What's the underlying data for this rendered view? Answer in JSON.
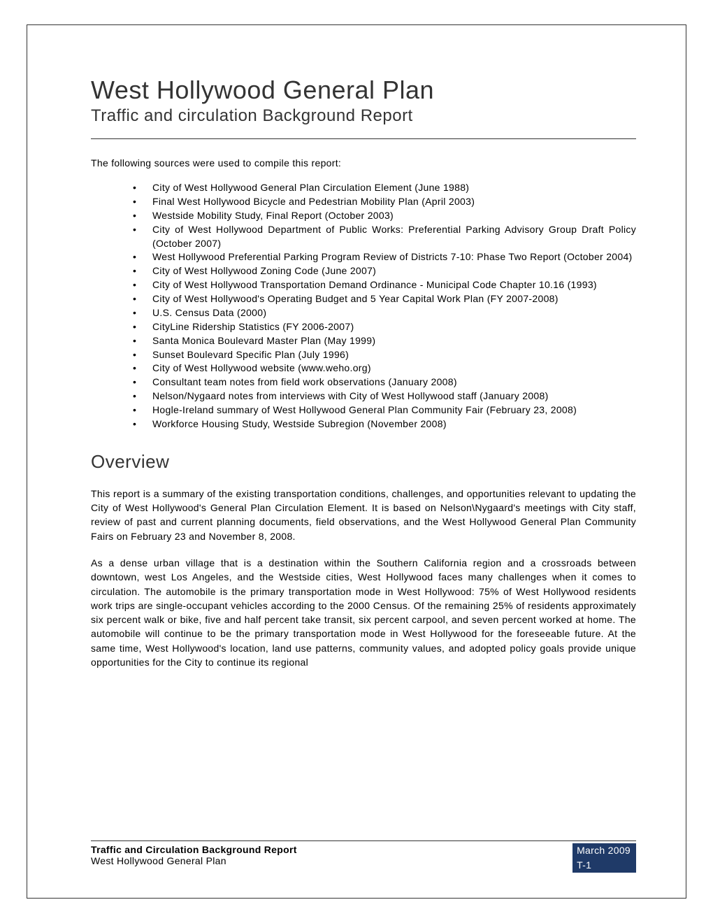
{
  "title": "West Hollywood General Plan",
  "subtitle": "Traffic and circulation Background Report",
  "intro": "The following sources were used to compile this report:",
  "sources": [
    "City of West Hollywood General Plan Circulation Element (June 1988)",
    "Final West Hollywood Bicycle and Pedestrian Mobility Plan (April 2003)",
    "Westside Mobility Study, Final Report (October 2003)",
    "City of West Hollywood Department of Public Works: Preferential Parking Advisory Group Draft Policy (October 2007)",
    "West Hollywood Preferential Parking Program Review of Districts 7-10: Phase Two Report (October 2004)",
    "City of West Hollywood Zoning Code (June 2007)",
    "City of West Hollywood Transportation Demand Ordinance - Municipal Code Chapter 10.16 (1993)",
    "City of West Hollywood's Operating Budget and 5 Year Capital Work Plan (FY 2007-2008)",
    "U.S. Census Data (2000)",
    "CityLine Ridership Statistics (FY 2006-2007)",
    "Santa Monica Boulevard Master Plan (May 1999)",
    "Sunset Boulevard Specific Plan (July 1996)",
    "City of West Hollywood website (www.weho.org)",
    "Consultant team notes from field work observations (January 2008)",
    "Nelson/Nygaard notes from interviews with City of West Hollywood staff (January 2008)",
    "Hogle-Ireland summary of West Hollywood General Plan Community Fair (February 23, 2008)",
    "Workforce Housing Study, Westside Subregion (November 2008)"
  ],
  "overview_heading": "Overview",
  "overview_p1": "This report is a summary of the existing transportation conditions, challenges, and opportunities relevant to updating the City of West Hollywood's General Plan Circulation Element.  It is based on Nelson\\Nygaard's meetings with City staff, review of past and current planning documents, field observations, and the West Hollywood General Plan Community Fairs on February 23 and November 8, 2008.",
  "overview_p2": "As a dense urban village that is a destination within the Southern California region and a crossroads between downtown, west Los Angeles, and the Westside cities, West Hollywood faces many challenges when it comes to circulation.  The automobile is the primary transportation mode in West Hollywood:  75% of West Hollywood residents work trips are single-occupant vehicles according to the 2000 Census.  Of the remaining 25% of residents approximately six percent walk or bike, five and half percent take transit, six percent carpool, and seven percent worked at home. The automobile will continue to be the primary transportation mode in West Hollywood for the foreseeable future.  At the same time, West Hollywood's location, land use patterns, community values, and adopted policy goals provide unique opportunities for the City to continue its regional",
  "footer": {
    "report_name": "Traffic and Circulation Background Report",
    "plan_name": "West Hollywood General Plan",
    "date": "March 2009",
    "page": "T-1"
  }
}
